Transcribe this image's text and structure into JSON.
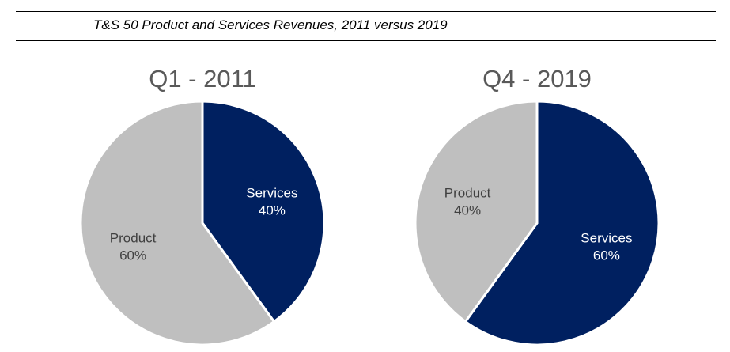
{
  "figure_title": "T&S 50 Product and Services Revenues, 2011 versus 2019",
  "colors": {
    "services": "#002060",
    "product": "#BFBFBF",
    "services_text": "#FFFFFF",
    "product_text": "#404040",
    "title_text": "#595959"
  },
  "chart_data": [
    {
      "type": "pie",
      "title": "Q1 - 2011",
      "start_angle_deg": 0,
      "direction": "clockwise",
      "slices": [
        {
          "label": "Services",
          "value": 40,
          "value_label": "40%",
          "color": "#002060"
        },
        {
          "label": "Product",
          "value": 60,
          "value_label": "60%",
          "color": "#BFBFBF"
        }
      ]
    },
    {
      "type": "pie",
      "title": "Q4 - 2019",
      "start_angle_deg": 0,
      "direction": "clockwise",
      "slices": [
        {
          "label": "Services",
          "value": 60,
          "value_label": "60%",
          "color": "#002060"
        },
        {
          "label": "Product",
          "value": 40,
          "value_label": "40%",
          "color": "#BFBFBF"
        }
      ]
    }
  ]
}
